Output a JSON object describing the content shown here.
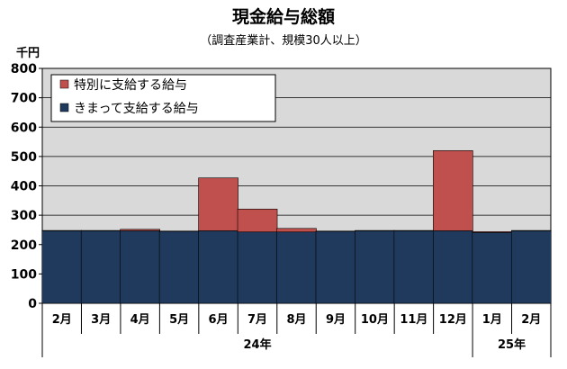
{
  "chart_data": {
    "type": "bar",
    "stacked": true,
    "title": "現金給与総額",
    "subtitle": "（調査産業計、規模30人以上）",
    "unit_label": "千円",
    "ylim": [
      0,
      800
    ],
    "yticks": [
      0,
      100,
      200,
      300,
      400,
      500,
      600,
      700,
      800
    ],
    "grid": true,
    "legend_position": "top-left",
    "categories": [
      "2月",
      "3月",
      "4月",
      "5月",
      "6月",
      "7月",
      "8月",
      "9月",
      "10月",
      "11月",
      "12月",
      "1月",
      "2月"
    ],
    "year_groups": [
      {
        "label": "24年",
        "count": 11
      },
      {
        "label": "25年",
        "count": 2
      }
    ],
    "series": [
      {
        "name": "きまって支給する給与",
        "color": "#1f3a5c",
        "values": [
          247,
          247,
          247,
          245,
          247,
          243,
          243,
          245,
          247,
          247,
          247,
          241,
          247
        ]
      },
      {
        "name": "特別に支給する給与",
        "color": "#c0504d",
        "values": [
          1,
          1,
          5,
          1,
          180,
          78,
          12,
          1,
          1,
          1,
          273,
          3,
          1
        ]
      }
    ],
    "legend_order": [
      "特別に支給する給与",
      "きまって支給する給与"
    ],
    "plot_background": "#d9d9d9"
  }
}
